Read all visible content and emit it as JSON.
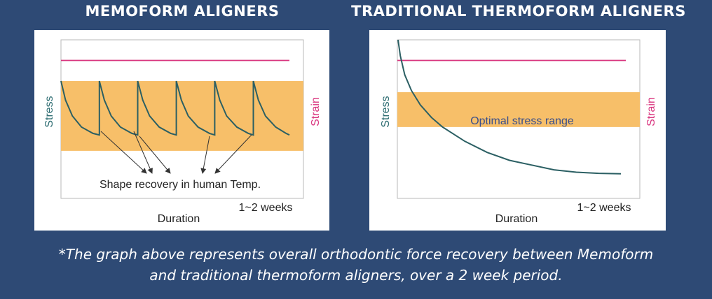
{
  "titles": {
    "left": "MEMOFORM ALIGNERS",
    "right": "TRADITIONAL THERMOFORM ALIGNERS"
  },
  "caption": {
    "line1": "*The graph above represents overall orthodontic force recovery between Memoform",
    "line2": "and traditional thermoform aligners, over a 2 week period."
  },
  "colors": {
    "background": "#2e4a75",
    "band": "#f7bf69",
    "strain_line": "#d9347e",
    "stress_curve": "#2b5f63",
    "stress_label": "#2b6b70",
    "strain_label": "#d9347e"
  },
  "chart_data": [
    {
      "type": "line",
      "title": "MEMOFORM ALIGNERS",
      "xlabel": "Duration",
      "ylabel": "Stress",
      "ylabel_right": "Strain",
      "x_end_label": "1~2 weeks",
      "annotation": "Shape recovery in human Temp.",
      "band_label": "",
      "xlim": [
        0,
        1
      ],
      "ylim": [
        0,
        1
      ],
      "strain_level": 0.87,
      "band": [
        0.3,
        0.74
      ],
      "series": [
        {
          "values": [
            [
              0.0,
              0.74
            ],
            [
              0.02,
              0.62
            ],
            [
              0.05,
              0.52
            ],
            [
              0.09,
              0.45
            ],
            [
              0.14,
              0.41
            ],
            [
              0.168,
              0.4
            ],
            [
              0.168,
              0.74
            ],
            [
              0.19,
              0.62
            ],
            [
              0.22,
              0.52
            ],
            [
              0.26,
              0.45
            ],
            [
              0.31,
              0.41
            ],
            [
              0.336,
              0.4
            ],
            [
              0.336,
              0.74
            ],
            [
              0.358,
              0.62
            ],
            [
              0.388,
              0.52
            ],
            [
              0.43,
              0.45
            ],
            [
              0.48,
              0.41
            ],
            [
              0.505,
              0.4
            ],
            [
              0.505,
              0.74
            ],
            [
              0.527,
              0.62
            ],
            [
              0.557,
              0.52
            ],
            [
              0.6,
              0.45
            ],
            [
              0.65,
              0.41
            ],
            [
              0.673,
              0.4
            ],
            [
              0.673,
              0.74
            ],
            [
              0.695,
              0.62
            ],
            [
              0.725,
              0.52
            ],
            [
              0.77,
              0.45
            ],
            [
              0.82,
              0.41
            ],
            [
              0.842,
              0.4
            ],
            [
              0.842,
              0.74
            ],
            [
              0.864,
              0.62
            ],
            [
              0.895,
              0.52
            ],
            [
              0.94,
              0.45
            ],
            [
              0.985,
              0.41
            ],
            [
              1.0,
              0.4
            ]
          ]
        }
      ]
    },
    {
      "type": "line",
      "title": "TRADITIONAL THERMOFORM ALIGNERS",
      "xlabel": "Duration",
      "ylabel": "Stress",
      "ylabel_right": "Strain",
      "x_end_label": "1~2 weeks",
      "annotation": "",
      "band_label": "Optimal stress range",
      "xlim": [
        0,
        1
      ],
      "ylim": [
        0,
        1
      ],
      "strain_level": 0.87,
      "band": [
        0.45,
        0.67
      ],
      "series": [
        {
          "values": [
            [
              0.0,
              1.0
            ],
            [
              0.01,
              0.9
            ],
            [
              0.03,
              0.78
            ],
            [
              0.06,
              0.68
            ],
            [
              0.1,
              0.59
            ],
            [
              0.15,
              0.51
            ],
            [
              0.2,
              0.45
            ],
            [
              0.3,
              0.36
            ],
            [
              0.4,
              0.29
            ],
            [
              0.5,
              0.24
            ],
            [
              0.6,
              0.21
            ],
            [
              0.7,
              0.18
            ],
            [
              0.8,
              0.165
            ],
            [
              0.9,
              0.158
            ],
            [
              1.0,
              0.155
            ]
          ]
        }
      ]
    }
  ]
}
